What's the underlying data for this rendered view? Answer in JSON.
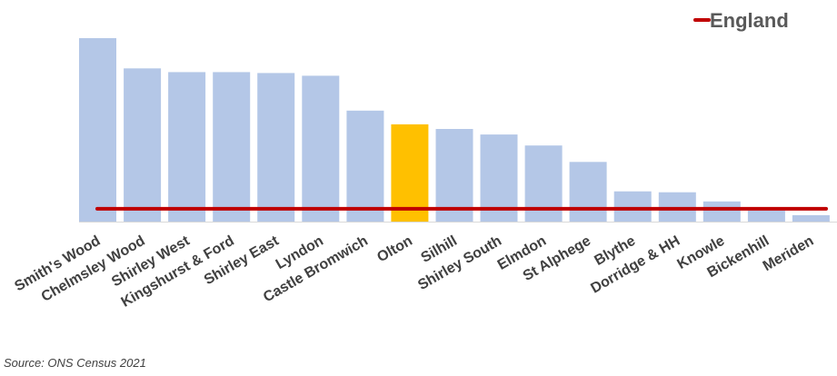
{
  "chart_data": {
    "type": "bar",
    "categories": [
      "Smith's Wood",
      "Chelmsley Wood",
      "Shirley West",
      "Kingshurst & Ford",
      "Shirley East",
      "Lyndon",
      "Castle Bromwich",
      "Olton",
      "Silhill",
      "Shirley South",
      "Elmdon",
      "St Alphege",
      "Blythe",
      "Dorridge & HH",
      "Knowle",
      "Bickenhill",
      "Meriden"
    ],
    "values": [
      100,
      83.5,
      81.5,
      81.5,
      81,
      79.5,
      60.5,
      53,
      50.5,
      47.5,
      41.5,
      32.5,
      16.5,
      16,
      11,
      6,
      3.5
    ],
    "highlight_category": "Olton",
    "reference_line": {
      "name": "England",
      "value": 7
    },
    "ylim": [
      0,
      100
    ],
    "grid": false,
    "legend_position": "top-right",
    "colors": {
      "bar": "#B4C7E7",
      "highlight": "#FFC000",
      "reference": "#C00000",
      "axis": "#D9D9D9"
    }
  },
  "source": "Source: ONS Census 2021"
}
